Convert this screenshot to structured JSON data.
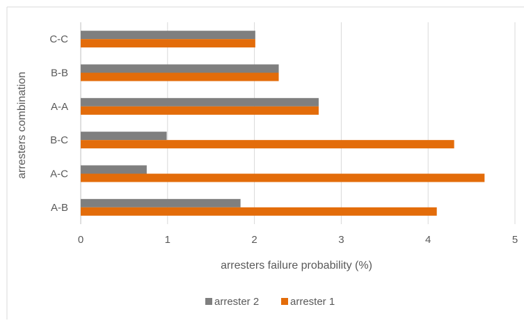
{
  "chart_data": {
    "type": "bar",
    "orientation": "horizontal",
    "categories": [
      "A-B",
      "A-C",
      "B-C",
      "A-A",
      "B-B",
      "C-C"
    ],
    "series": [
      {
        "name": "arrester 2",
        "color": "#7f7f7f",
        "values": [
          1.84,
          0.76,
          0.99,
          2.74,
          2.28,
          2.01
        ]
      },
      {
        "name": "arrester 1",
        "color": "#e36c0a",
        "values": [
          4.1,
          4.65,
          4.3,
          2.74,
          2.28,
          2.01
        ]
      }
    ],
    "xlabel": "arresters failure probability (%)",
    "ylabel": "arresters combination",
    "xlim": [
      0,
      5
    ],
    "xticks": [
      "0",
      "1",
      "2",
      "3",
      "4",
      "5"
    ],
    "grid": true,
    "legend_position": "bottom"
  }
}
